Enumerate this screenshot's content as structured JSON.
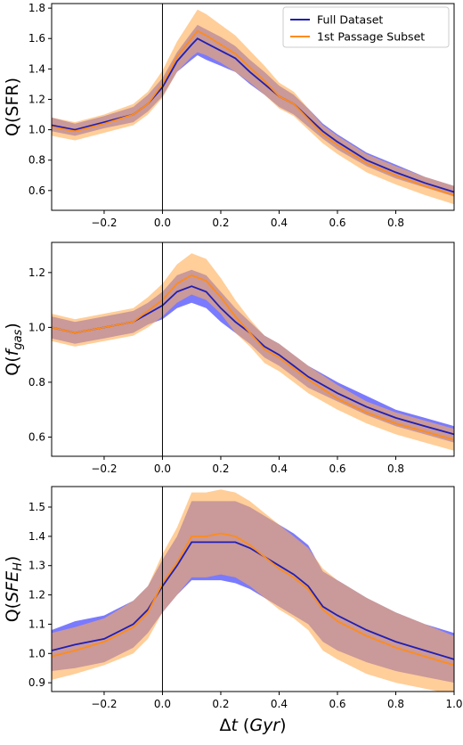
{
  "chart_data": [
    {
      "type": "area",
      "ylabel": "Q(SFR)",
      "ylabel_base": "Q(SFR)",
      "ylabel_sub": "",
      "xlabel": "",
      "xlim": [
        -0.38,
        1.0
      ],
      "ylim": [
        0.47,
        1.83
      ],
      "xticks": [
        -0.2,
        0.0,
        0.2,
        0.4,
        0.6,
        0.8
      ],
      "xtick_labels": [
        "−0.2",
        "0.0",
        "0.2",
        "0.4",
        "0.6",
        "0.8"
      ],
      "yticks": [
        0.6,
        0.8,
        1.0,
        1.2,
        1.4,
        1.6,
        1.8
      ],
      "ytick_labels": [
        "0.6",
        "0.8",
        "1.0",
        "1.2",
        "1.4",
        "1.6",
        "1.8"
      ],
      "vline_x": 0.0,
      "legend": {
        "position": "top-right",
        "entries": [
          "Full Dataset",
          "1st Passage Subset"
        ]
      },
      "series": [
        {
          "name": "Full Dataset",
          "color": "#1f1fb4",
          "band_color": "#6b6bff",
          "x": [
            -0.38,
            -0.3,
            -0.2,
            -0.1,
            -0.05,
            0.0,
            0.05,
            0.1,
            0.12,
            0.15,
            0.2,
            0.25,
            0.3,
            0.35,
            0.4,
            0.45,
            0.5,
            0.55,
            0.6,
            0.7,
            0.8,
            0.9,
            1.0
          ],
          "y": [
            1.03,
            1.0,
            1.05,
            1.1,
            1.17,
            1.28,
            1.45,
            1.56,
            1.6,
            1.57,
            1.52,
            1.47,
            1.38,
            1.3,
            1.22,
            1.17,
            1.08,
            0.99,
            0.92,
            0.8,
            0.72,
            0.65,
            0.59
          ],
          "lower": [
            0.99,
            0.96,
            1.01,
            1.05,
            1.12,
            1.22,
            1.38,
            1.46,
            1.49,
            1.46,
            1.42,
            1.38,
            1.3,
            1.23,
            1.15,
            1.1,
            1.02,
            0.94,
            0.87,
            0.76,
            0.68,
            0.62,
            0.56
          ],
          "upper": [
            1.08,
            1.04,
            1.09,
            1.15,
            1.23,
            1.34,
            1.51,
            1.64,
            1.69,
            1.66,
            1.61,
            1.55,
            1.46,
            1.38,
            1.29,
            1.23,
            1.14,
            1.04,
            0.97,
            0.85,
            0.77,
            0.69,
            0.63
          ]
        },
        {
          "name": "1st Passage Subset",
          "color": "#ff8c1a",
          "band_color": "#ffad55",
          "x": [
            -0.38,
            -0.3,
            -0.2,
            -0.1,
            -0.05,
            0.0,
            0.05,
            0.1,
            0.12,
            0.15,
            0.2,
            0.25,
            0.3,
            0.35,
            0.4,
            0.45,
            0.5,
            0.55,
            0.6,
            0.7,
            0.8,
            0.9,
            1.0
          ],
          "y": [
            1.02,
            0.99,
            1.04,
            1.1,
            1.17,
            1.3,
            1.48,
            1.6,
            1.65,
            1.62,
            1.56,
            1.5,
            1.41,
            1.32,
            1.22,
            1.17,
            1.07,
            0.97,
            0.9,
            0.78,
            0.7,
            0.63,
            0.57
          ],
          "lower": [
            0.96,
            0.93,
            0.98,
            1.03,
            1.1,
            1.21,
            1.38,
            1.48,
            1.51,
            1.49,
            1.44,
            1.38,
            1.31,
            1.23,
            1.14,
            1.09,
            1.0,
            0.91,
            0.84,
            0.72,
            0.64,
            0.57,
            0.51
          ],
          "upper": [
            1.08,
            1.05,
            1.1,
            1.17,
            1.25,
            1.39,
            1.58,
            1.73,
            1.79,
            1.76,
            1.69,
            1.62,
            1.52,
            1.42,
            1.31,
            1.25,
            1.14,
            1.03,
            0.96,
            0.84,
            0.76,
            0.69,
            0.63
          ]
        }
      ]
    },
    {
      "type": "area",
      "ylabel": "Q(f_gas)",
      "ylabel_base": "Q(",
      "ylabel_sub": "gas",
      "ylabel_italic": "f",
      "xlabel": "",
      "xlim": [
        -0.38,
        1.0
      ],
      "ylim": [
        0.53,
        1.31
      ],
      "xticks": [
        -0.2,
        0.0,
        0.2,
        0.4,
        0.6,
        0.8
      ],
      "xtick_labels": [
        "−0.2",
        "0.0",
        "0.2",
        "0.4",
        "0.6",
        "0.8"
      ],
      "yticks": [
        0.6,
        0.8,
        1.0,
        1.2
      ],
      "ytick_labels": [
        "0.6",
        "0.8",
        "1.0",
        "1.2"
      ],
      "vline_x": 0.0,
      "series": [
        {
          "name": "Full Dataset",
          "color": "#1f1fb4",
          "band_color": "#6b6bff",
          "x": [
            -0.38,
            -0.3,
            -0.2,
            -0.1,
            -0.05,
            0.0,
            0.05,
            0.1,
            0.15,
            0.2,
            0.25,
            0.3,
            0.35,
            0.4,
            0.45,
            0.5,
            0.6,
            0.7,
            0.8,
            0.9,
            1.0
          ],
          "y": [
            1.0,
            0.98,
            1.0,
            1.02,
            1.05,
            1.08,
            1.13,
            1.15,
            1.13,
            1.07,
            1.02,
            0.98,
            0.93,
            0.9,
            0.86,
            0.82,
            0.76,
            0.71,
            0.67,
            0.64,
            0.61
          ],
          "lower": [
            0.96,
            0.94,
            0.96,
            0.98,
            1.01,
            1.03,
            1.07,
            1.09,
            1.07,
            1.02,
            0.98,
            0.94,
            0.89,
            0.86,
            0.82,
            0.78,
            0.73,
            0.68,
            0.64,
            0.61,
            0.58
          ],
          "upper": [
            1.04,
            1.02,
            1.04,
            1.06,
            1.09,
            1.13,
            1.19,
            1.21,
            1.19,
            1.13,
            1.07,
            1.02,
            0.97,
            0.94,
            0.9,
            0.86,
            0.8,
            0.75,
            0.7,
            0.67,
            0.64
          ]
        },
        {
          "name": "1st Passage Subset",
          "color": "#ff8c1a",
          "band_color": "#ffad55",
          "x": [
            -0.38,
            -0.3,
            -0.2,
            -0.1,
            -0.05,
            0.0,
            0.05,
            0.1,
            0.15,
            0.2,
            0.25,
            0.3,
            0.35,
            0.4,
            0.45,
            0.5,
            0.6,
            0.7,
            0.8,
            0.9,
            1.0
          ],
          "y": [
            1.0,
            0.98,
            1.0,
            1.02,
            1.06,
            1.1,
            1.16,
            1.19,
            1.17,
            1.11,
            1.04,
            0.98,
            0.92,
            0.89,
            0.85,
            0.81,
            0.74,
            0.69,
            0.65,
            0.62,
            0.59
          ],
          "lower": [
            0.95,
            0.93,
            0.95,
            0.97,
            1.0,
            1.04,
            1.09,
            1.12,
            1.1,
            1.05,
            0.98,
            0.93,
            0.87,
            0.84,
            0.8,
            0.76,
            0.7,
            0.65,
            0.61,
            0.58,
            0.55
          ],
          "upper": [
            1.05,
            1.03,
            1.05,
            1.07,
            1.11,
            1.16,
            1.23,
            1.27,
            1.25,
            1.18,
            1.1,
            1.03,
            0.97,
            0.94,
            0.9,
            0.86,
            0.79,
            0.73,
            0.69,
            0.66,
            0.63
          ]
        }
      ]
    },
    {
      "type": "area",
      "ylabel": "Q(SFE_H)",
      "ylabel_base": "Q(",
      "ylabel_sub": "H",
      "ylabel_italic": "SFE",
      "xlabel": "Δt (Gyr)",
      "xlabel_delta": "Δ",
      "xlabel_t": "t",
      "xlabel_open": " (",
      "xlabel_unit": "Gyr",
      "xlabel_close": ")",
      "xlim": [
        -0.38,
        1.0
      ],
      "ylim": [
        0.87,
        1.57
      ],
      "xticks": [
        -0.2,
        0.0,
        0.2,
        0.4,
        0.6,
        0.8,
        1.0
      ],
      "xtick_labels": [
        "−0.2",
        "0.0",
        "0.2",
        "0.4",
        "0.6",
        "0.8",
        "1.0"
      ],
      "yticks": [
        0.9,
        1.0,
        1.1,
        1.2,
        1.3,
        1.4,
        1.5
      ],
      "ytick_labels": [
        "0.9",
        "1.0",
        "1.1",
        "1.2",
        "1.3",
        "1.4",
        "1.5"
      ],
      "vline_x": 0.0,
      "series": [
        {
          "name": "Full Dataset",
          "color": "#1f1fb4",
          "band_color": "#6b6bff",
          "x": [
            -0.38,
            -0.3,
            -0.2,
            -0.1,
            -0.05,
            0.0,
            0.05,
            0.1,
            0.15,
            0.2,
            0.25,
            0.3,
            0.35,
            0.4,
            0.45,
            0.5,
            0.55,
            0.6,
            0.7,
            0.8,
            0.9,
            1.0
          ],
          "y": [
            1.01,
            1.03,
            1.05,
            1.1,
            1.15,
            1.23,
            1.3,
            1.38,
            1.38,
            1.38,
            1.38,
            1.36,
            1.33,
            1.3,
            1.27,
            1.23,
            1.16,
            1.13,
            1.08,
            1.04,
            1.01,
            0.98
          ],
          "lower": [
            0.94,
            0.95,
            0.97,
            1.02,
            1.07,
            1.14,
            1.2,
            1.25,
            1.25,
            1.25,
            1.24,
            1.22,
            1.19,
            1.16,
            1.13,
            1.1,
            1.04,
            1.01,
            0.97,
            0.94,
            0.92,
            0.9
          ],
          "upper": [
            1.08,
            1.11,
            1.13,
            1.18,
            1.23,
            1.32,
            1.4,
            1.52,
            1.52,
            1.52,
            1.52,
            1.5,
            1.47,
            1.44,
            1.41,
            1.37,
            1.28,
            1.25,
            1.19,
            1.14,
            1.1,
            1.07
          ]
        },
        {
          "name": "1st Passage Subset",
          "color": "#ff8c1a",
          "band_color": "#ffad55",
          "x": [
            -0.38,
            -0.3,
            -0.2,
            -0.1,
            -0.05,
            0.0,
            0.05,
            0.1,
            0.15,
            0.2,
            0.25,
            0.3,
            0.35,
            0.4,
            0.45,
            0.5,
            0.55,
            0.6,
            0.7,
            0.8,
            0.9,
            1.0
          ],
          "y": [
            0.99,
            1.01,
            1.04,
            1.09,
            1.14,
            1.24,
            1.31,
            1.4,
            1.4,
            1.41,
            1.4,
            1.37,
            1.33,
            1.29,
            1.26,
            1.22,
            1.15,
            1.11,
            1.06,
            1.02,
            0.99,
            0.96
          ],
          "lower": [
            0.91,
            0.93,
            0.96,
            1.0,
            1.05,
            1.14,
            1.2,
            1.26,
            1.26,
            1.27,
            1.26,
            1.23,
            1.19,
            1.15,
            1.12,
            1.08,
            1.01,
            0.98,
            0.93,
            0.9,
            0.88,
            0.86
          ],
          "upper": [
            1.07,
            1.09,
            1.12,
            1.18,
            1.23,
            1.34,
            1.43,
            1.55,
            1.55,
            1.56,
            1.55,
            1.52,
            1.48,
            1.44,
            1.4,
            1.36,
            1.29,
            1.25,
            1.19,
            1.14,
            1.1,
            1.06
          ]
        }
      ]
    }
  ]
}
